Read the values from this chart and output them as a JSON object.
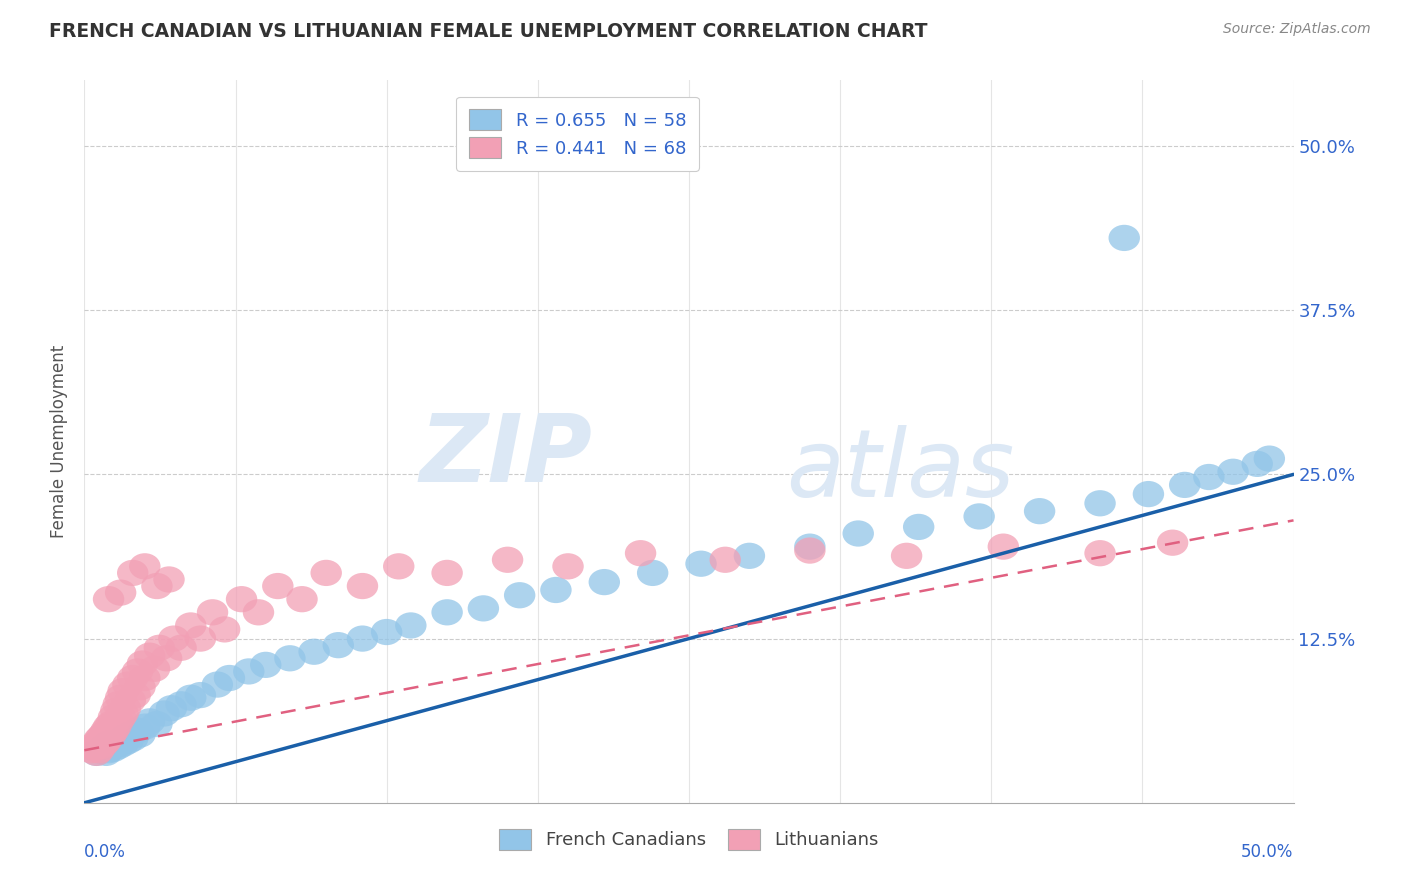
{
  "title": "FRENCH CANADIAN VS LITHUANIAN FEMALE UNEMPLOYMENT CORRELATION CHART",
  "source": "Source: ZipAtlas.com",
  "ylabel": "Female Unemployment",
  "legend_label1": "French Canadians",
  "legend_label2": "Lithuanians",
  "blue_color": "#92C5E8",
  "pink_color": "#F2A0B5",
  "blue_line_color": "#1A5FA8",
  "pink_line_color": "#E06080",
  "text_color": "#3366CC",
  "background_color": "#FFFFFF",
  "watermark_zip": "ZIP",
  "watermark_atlas": "atlas",
  "xlim": [
    0,
    0.5
  ],
  "ylim": [
    0,
    0.55
  ],
  "blue_line_x0": 0.0,
  "blue_line_y0": 0.0,
  "blue_line_x1": 0.5,
  "blue_line_y1": 0.25,
  "pink_line_x0": 0.0,
  "pink_line_y0": 0.04,
  "pink_line_x1": 0.5,
  "pink_line_y1": 0.215,
  "french_x": [
    0.005,
    0.007,
    0.008,
    0.009,
    0.01,
    0.01,
    0.011,
    0.012,
    0.013,
    0.014,
    0.015,
    0.016,
    0.016,
    0.017,
    0.018,
    0.019,
    0.02,
    0.022,
    0.023,
    0.025,
    0.027,
    0.03,
    0.033,
    0.036,
    0.04,
    0.044,
    0.048,
    0.055,
    0.06,
    0.068,
    0.075,
    0.085,
    0.095,
    0.105,
    0.115,
    0.125,
    0.135,
    0.15,
    0.165,
    0.18,
    0.195,
    0.215,
    0.235,
    0.255,
    0.275,
    0.3,
    0.32,
    0.345,
    0.37,
    0.395,
    0.42,
    0.44,
    0.455,
    0.465,
    0.475,
    0.485,
    0.49,
    0.43
  ],
  "french_y": [
    0.038,
    0.04,
    0.042,
    0.038,
    0.04,
    0.045,
    0.043,
    0.041,
    0.044,
    0.043,
    0.046,
    0.048,
    0.045,
    0.05,
    0.047,
    0.052,
    0.049,
    0.055,
    0.052,
    0.058,
    0.062,
    0.06,
    0.068,
    0.072,
    0.075,
    0.08,
    0.082,
    0.09,
    0.095,
    0.1,
    0.105,
    0.11,
    0.115,
    0.12,
    0.125,
    0.13,
    0.135,
    0.145,
    0.148,
    0.158,
    0.162,
    0.168,
    0.175,
    0.182,
    0.188,
    0.195,
    0.205,
    0.21,
    0.218,
    0.222,
    0.228,
    0.235,
    0.242,
    0.248,
    0.252,
    0.258,
    0.262,
    0.43
  ],
  "lithuanian_x": [
    0.003,
    0.004,
    0.005,
    0.005,
    0.006,
    0.006,
    0.007,
    0.007,
    0.008,
    0.008,
    0.009,
    0.009,
    0.01,
    0.01,
    0.011,
    0.011,
    0.012,
    0.012,
    0.013,
    0.013,
    0.014,
    0.014,
    0.015,
    0.015,
    0.016,
    0.016,
    0.017,
    0.018,
    0.019,
    0.02,
    0.021,
    0.022,
    0.023,
    0.024,
    0.025,
    0.027,
    0.029,
    0.031,
    0.034,
    0.037,
    0.04,
    0.044,
    0.048,
    0.053,
    0.058,
    0.065,
    0.072,
    0.08,
    0.09,
    0.1,
    0.115,
    0.13,
    0.15,
    0.175,
    0.2,
    0.23,
    0.265,
    0.3,
    0.34,
    0.38,
    0.42,
    0.45,
    0.01,
    0.015,
    0.02,
    0.025,
    0.03,
    0.035
  ],
  "lithuanian_y": [
    0.04,
    0.042,
    0.038,
    0.045,
    0.04,
    0.048,
    0.043,
    0.05,
    0.045,
    0.052,
    0.047,
    0.055,
    0.05,
    0.058,
    0.052,
    0.06,
    0.055,
    0.065,
    0.058,
    0.07,
    0.062,
    0.075,
    0.065,
    0.08,
    0.068,
    0.085,
    0.072,
    0.09,
    0.078,
    0.095,
    0.082,
    0.1,
    0.088,
    0.106,
    0.095,
    0.112,
    0.102,
    0.118,
    0.11,
    0.125,
    0.118,
    0.135,
    0.125,
    0.145,
    0.132,
    0.155,
    0.145,
    0.165,
    0.155,
    0.175,
    0.165,
    0.18,
    0.175,
    0.185,
    0.18,
    0.19,
    0.185,
    0.192,
    0.188,
    0.195,
    0.19,
    0.198,
    0.155,
    0.16,
    0.175,
    0.18,
    0.165,
    0.17
  ]
}
